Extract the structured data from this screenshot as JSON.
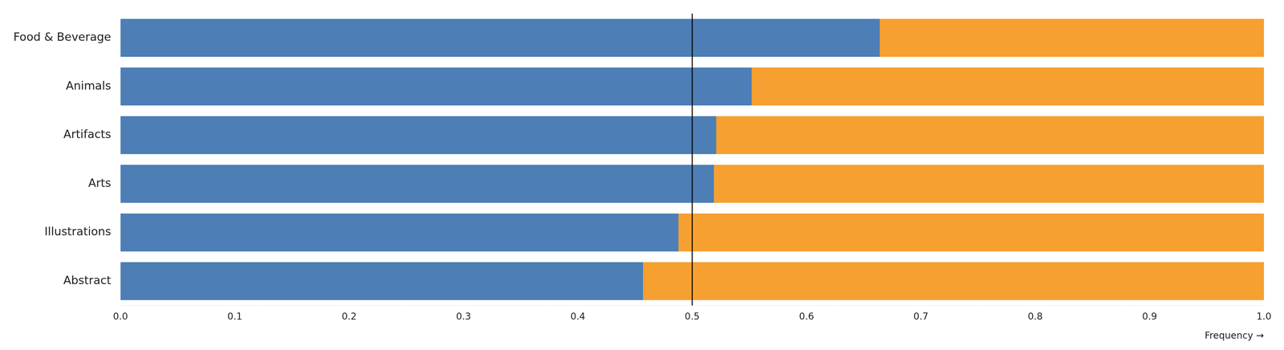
{
  "chart_data": {
    "type": "bar",
    "orientation": "horizontal",
    "stacked": true,
    "xlabel": "Frequency →",
    "categories": [
      "Food & Beverage",
      "Animals",
      "Artifacts",
      "Arts",
      "Illustrations",
      "Abstract"
    ],
    "series": [
      {
        "color": "#4d7eb5",
        "values": [
          0.664,
          0.552,
          0.521,
          0.519,
          0.488,
          0.457
        ]
      },
      {
        "color": "#f5a030",
        "values": [
          0.336,
          0.448,
          0.479,
          0.481,
          0.512,
          0.543
        ]
      }
    ],
    "xlim": [
      0.0,
      1.0
    ],
    "xticks": [
      {
        "value": 0,
        "label": "0.0"
      },
      0.1,
      0.2,
      0.3,
      0.4,
      0.5,
      0.6,
      0.7,
      0.8,
      0.9,
      {
        "value": 1,
        "label": "1.0"
      }
    ],
    "vline_x": 0.5,
    "grid": false
  }
}
